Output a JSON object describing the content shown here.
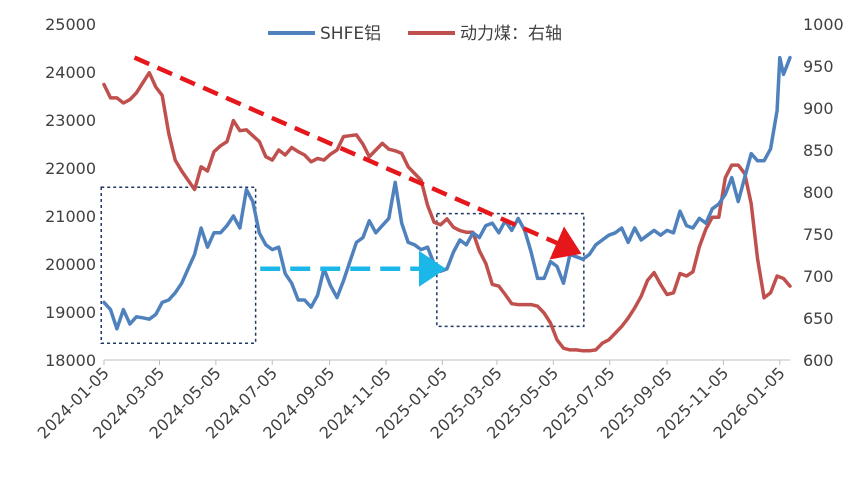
{
  "chart_data": {
    "type": "line",
    "legend": {
      "position": "top",
      "entries": [
        "SHFE铝",
        "动力煤：右轴"
      ]
    },
    "grid": false,
    "y_left": {
      "ticks": [
        "18000",
        "19000",
        "20000",
        "21000",
        "22000",
        "23000",
        "24000",
        "25000"
      ],
      "range": [
        18000,
        25000
      ]
    },
    "y_right": {
      "ticks": [
        "600",
        "650",
        "700",
        "750",
        "800",
        "850",
        "900",
        "950",
        "1000"
      ],
      "range": [
        600,
        1000
      ]
    },
    "x_ticks": [
      "2024-01-05",
      "2024-03-05",
      "2024-05-05",
      "2024-07-05",
      "2024-09-05",
      "2024-11-05",
      "2025-01-05",
      "2025-03-05",
      "2025-05-05",
      "2025-07-05",
      "2025-09-05",
      "2025-11-05",
      "2026-01-05"
    ],
    "series": [
      {
        "name": "SHFE铝",
        "axis": "left",
        "color": "#4f81bd",
        "points": [
          [
            "2024-01-05",
            19200
          ],
          [
            "2024-01-12",
            19050
          ],
          [
            "2024-01-19",
            18650
          ],
          [
            "2024-01-26",
            19050
          ],
          [
            "2024-02-02",
            18750
          ],
          [
            "2024-02-09",
            18900
          ],
          [
            "2024-02-16",
            18880
          ],
          [
            "2024-02-23",
            18850
          ],
          [
            "2024-03-01",
            18950
          ],
          [
            "2024-03-08",
            19200
          ],
          [
            "2024-03-15",
            19250
          ],
          [
            "2024-03-22",
            19400
          ],
          [
            "2024-03-29",
            19600
          ],
          [
            "2024-04-05",
            19900
          ],
          [
            "2024-04-12",
            20200
          ],
          [
            "2024-04-19",
            20750
          ],
          [
            "2024-04-26",
            20350
          ],
          [
            "2024-05-03",
            20650
          ],
          [
            "2024-05-10",
            20650
          ],
          [
            "2024-05-17",
            20800
          ],
          [
            "2024-05-24",
            21000
          ],
          [
            "2024-05-31",
            20750
          ],
          [
            "2024-06-07",
            21550
          ],
          [
            "2024-06-14",
            21300
          ],
          [
            "2024-06-21",
            20650
          ],
          [
            "2024-06-28",
            20400
          ],
          [
            "2024-07-05",
            20300
          ],
          [
            "2024-07-12",
            20350
          ],
          [
            "2024-07-19",
            19800
          ],
          [
            "2024-07-26",
            19600
          ],
          [
            "2024-08-02",
            19250
          ],
          [
            "2024-08-09",
            19250
          ],
          [
            "2024-08-16",
            19100
          ],
          [
            "2024-08-23",
            19350
          ],
          [
            "2024-08-30",
            19900
          ],
          [
            "2024-09-06",
            19550
          ],
          [
            "2024-09-13",
            19300
          ],
          [
            "2024-09-20",
            19650
          ],
          [
            "2024-09-27",
            20050
          ],
          [
            "2024-10-04",
            20450
          ],
          [
            "2024-10-11",
            20550
          ],
          [
            "2024-10-18",
            20900
          ],
          [
            "2024-10-25",
            20650
          ],
          [
            "2024-11-01",
            20800
          ],
          [
            "2024-11-08",
            20950
          ],
          [
            "2024-11-15",
            21700
          ],
          [
            "2024-11-22",
            20850
          ],
          [
            "2024-11-29",
            20450
          ],
          [
            "2024-12-06",
            20400
          ],
          [
            "2024-12-13",
            20300
          ],
          [
            "2024-12-20",
            20350
          ],
          [
            "2024-12-27",
            20000
          ],
          [
            "2025-01-03",
            19850
          ],
          [
            "2025-01-10",
            19900
          ],
          [
            "2025-01-17",
            20250
          ],
          [
            "2025-01-24",
            20500
          ],
          [
            "2025-01-31",
            20400
          ],
          [
            "2025-02-07",
            20650
          ],
          [
            "2025-02-14",
            20550
          ],
          [
            "2025-02-21",
            20800
          ],
          [
            "2025-02-28",
            20850
          ],
          [
            "2025-03-07",
            20650
          ],
          [
            "2025-03-14",
            20900
          ],
          [
            "2025-03-21",
            20700
          ],
          [
            "2025-03-28",
            20950
          ],
          [
            "2025-04-04",
            20700
          ],
          [
            "2025-04-11",
            20250
          ],
          [
            "2025-04-18",
            19700
          ],
          [
            "2025-04-25",
            19700
          ],
          [
            "2025-05-02",
            20050
          ],
          [
            "2025-05-09",
            19950
          ],
          [
            "2025-05-16",
            19600
          ],
          [
            "2025-05-23",
            20200
          ],
          [
            "2025-05-30",
            20150
          ],
          [
            "2025-06-06",
            20100
          ],
          [
            "2025-06-13",
            20200
          ],
          [
            "2025-06-20",
            20400
          ],
          [
            "2025-06-27",
            20500
          ],
          [
            "2025-07-04",
            20600
          ],
          [
            "2025-07-11",
            20650
          ],
          [
            "2025-07-18",
            20750
          ],
          [
            "2025-07-25",
            20450
          ],
          [
            "2025-08-01",
            20750
          ],
          [
            "2025-08-08",
            20500
          ],
          [
            "2025-08-15",
            20600
          ],
          [
            "2025-08-22",
            20700
          ],
          [
            "2025-08-29",
            20600
          ],
          [
            "2025-09-05",
            20700
          ],
          [
            "2025-09-12",
            20650
          ],
          [
            "2025-09-19",
            21100
          ],
          [
            "2025-09-26",
            20800
          ],
          [
            "2025-10-03",
            20750
          ],
          [
            "2025-10-10",
            20950
          ],
          [
            "2025-10-17",
            20850
          ],
          [
            "2025-10-24",
            21150
          ],
          [
            "2025-10-31",
            21250
          ],
          [
            "2025-11-07",
            21450
          ],
          [
            "2025-11-14",
            21800
          ],
          [
            "2025-11-21",
            21300
          ],
          [
            "2025-11-28",
            21800
          ],
          [
            "2025-12-05",
            22300
          ],
          [
            "2025-12-12",
            22150
          ],
          [
            "2025-12-19",
            22150
          ],
          [
            "2025-12-26",
            22400
          ],
          [
            "2026-01-02",
            23200
          ],
          [
            "2026-01-05",
            24300
          ],
          [
            "2026-01-09",
            23950
          ],
          [
            "2026-01-16",
            24300
          ]
        ]
      },
      {
        "name": "动力煤：右轴",
        "axis": "right",
        "color": "#c0504d",
        "points": [
          [
            "2024-01-05",
            928
          ],
          [
            "2024-01-12",
            912
          ],
          [
            "2024-01-19",
            912
          ],
          [
            "2024-01-26",
            906
          ],
          [
            "2024-02-02",
            910
          ],
          [
            "2024-02-09",
            918
          ],
          [
            "2024-02-16",
            930
          ],
          [
            "2024-02-23",
            942
          ],
          [
            "2024-03-01",
            925
          ],
          [
            "2024-03-08",
            915
          ],
          [
            "2024-03-15",
            870
          ],
          [
            "2024-03-22",
            838
          ],
          [
            "2024-03-29",
            825
          ],
          [
            "2024-04-05",
            814
          ],
          [
            "2024-04-12",
            803
          ],
          [
            "2024-04-19",
            830
          ],
          [
            "2024-04-26",
            825
          ],
          [
            "2024-05-03",
            848
          ],
          [
            "2024-05-10",
            855
          ],
          [
            "2024-05-17",
            860
          ],
          [
            "2024-05-24",
            885
          ],
          [
            "2024-05-31",
            873
          ],
          [
            "2024-06-07",
            874
          ],
          [
            "2024-06-14",
            867
          ],
          [
            "2024-06-21",
            860
          ],
          [
            "2024-06-28",
            842
          ],
          [
            "2024-07-05",
            838
          ],
          [
            "2024-07-12",
            850
          ],
          [
            "2024-07-19",
            844
          ],
          [
            "2024-07-26",
            853
          ],
          [
            "2024-08-02",
            848
          ],
          [
            "2024-08-09",
            844
          ],
          [
            "2024-08-16",
            836
          ],
          [
            "2024-08-23",
            840
          ],
          [
            "2024-08-30",
            838
          ],
          [
            "2024-09-06",
            845
          ],
          [
            "2024-09-13",
            850
          ],
          [
            "2024-09-20",
            866
          ],
          [
            "2024-09-27",
            867
          ],
          [
            "2024-10-04",
            868
          ],
          [
            "2024-10-11",
            857
          ],
          [
            "2024-10-18",
            842
          ],
          [
            "2024-10-25",
            850
          ],
          [
            "2024-11-01",
            858
          ],
          [
            "2024-11-08",
            851
          ],
          [
            "2024-11-15",
            849
          ],
          [
            "2024-11-22",
            846
          ],
          [
            "2024-11-29",
            830
          ],
          [
            "2024-12-06",
            822
          ],
          [
            "2024-12-13",
            814
          ],
          [
            "2024-12-20",
            784
          ],
          [
            "2024-12-27",
            764
          ],
          [
            "2025-01-03",
            761
          ],
          [
            "2025-01-10",
            768
          ],
          [
            "2025-01-17",
            758
          ],
          [
            "2025-01-24",
            754
          ],
          [
            "2025-01-31",
            752
          ],
          [
            "2025-02-07",
            752
          ],
          [
            "2025-02-14",
            730
          ],
          [
            "2025-02-21",
            715
          ],
          [
            "2025-02-28",
            690
          ],
          [
            "2025-03-07",
            688
          ],
          [
            "2025-03-14",
            678
          ],
          [
            "2025-03-21",
            667
          ],
          [
            "2025-03-28",
            666
          ],
          [
            "2025-04-04",
            666
          ],
          [
            "2025-04-11",
            666
          ],
          [
            "2025-04-18",
            664
          ],
          [
            "2025-04-25",
            656
          ],
          [
            "2025-05-02",
            644
          ],
          [
            "2025-05-09",
            624
          ],
          [
            "2025-05-16",
            614
          ],
          [
            "2025-05-23",
            612
          ],
          [
            "2025-05-30",
            612
          ],
          [
            "2025-06-06",
            611
          ],
          [
            "2025-06-13",
            611
          ],
          [
            "2025-06-20",
            612
          ],
          [
            "2025-06-27",
            620
          ],
          [
            "2025-07-04",
            624
          ],
          [
            "2025-07-11",
            632
          ],
          [
            "2025-07-18",
            640
          ],
          [
            "2025-07-25",
            650
          ],
          [
            "2025-08-01",
            662
          ],
          [
            "2025-08-08",
            676
          ],
          [
            "2025-08-15",
            695
          ],
          [
            "2025-08-22",
            704
          ],
          [
            "2025-08-29",
            690
          ],
          [
            "2025-09-05",
            678
          ],
          [
            "2025-09-12",
            680
          ],
          [
            "2025-09-19",
            703
          ],
          [
            "2025-09-26",
            700
          ],
          [
            "2025-10-03",
            705
          ],
          [
            "2025-10-10",
            735
          ],
          [
            "2025-10-17",
            756
          ],
          [
            "2025-10-24",
            770
          ],
          [
            "2025-10-31",
            770
          ],
          [
            "2025-11-07",
            817
          ],
          [
            "2025-11-14",
            832
          ],
          [
            "2025-11-21",
            832
          ],
          [
            "2025-11-28",
            822
          ],
          [
            "2025-12-05",
            786
          ],
          [
            "2025-12-12",
            720
          ],
          [
            "2025-12-19",
            674
          ],
          [
            "2025-12-26",
            680
          ],
          [
            "2026-01-02",
            700
          ],
          [
            "2026-01-09",
            697
          ],
          [
            "2026-01-16",
            688
          ]
        ]
      }
    ],
    "annotations": {
      "dashed_boxes": [
        {
          "x0": "2024-01-02",
          "x1": "2024-06-17",
          "y0": 18350,
          "y1": 21600
        },
        {
          "x0": "2024-12-30",
          "x1": "2025-06-07",
          "y0": 18700,
          "y1": 21050
        }
      ],
      "arrows": [
        {
          "color": "#e6171b",
          "from": [
            "2024-02-07",
            24300
          ],
          "to": [
            "2025-05-31",
            20250
          ]
        },
        {
          "color": "#1bb7e8",
          "from": [
            "2024-06-22",
            19900
          ],
          "to": [
            "2025-01-04",
            19900
          ]
        }
      ]
    }
  }
}
